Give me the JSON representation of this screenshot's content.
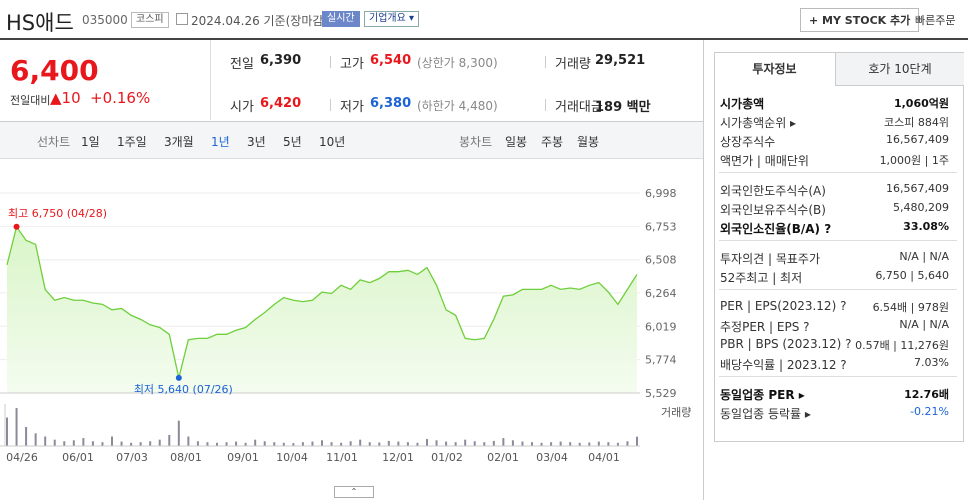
{
  "header": {
    "name": "HS애드",
    "code": "035000",
    "market": "코스피",
    "date": "2024.04.26 기준(장마감)",
    "realtime": "실시간",
    "overview": "기업개요 ▾",
    "mystock": "+ MY STOCK 추가",
    "quick_order": "빠른주문"
  },
  "price": {
    "current": "6,400",
    "change_label": "전일대비",
    "change": "▲10",
    "change_rate": "+0.16%"
  },
  "summary": [
    {
      "label": "전일",
      "value": "6,390"
    },
    {
      "label": "고가",
      "value": "6,540",
      "note": "(상한가 8,300)"
    },
    {
      "label": "거래량",
      "value": "29,521"
    },
    {
      "label": "시가",
      "value": "6,420"
    },
    {
      "label": "저가",
      "value": "6,380",
      "note": "(하한가 4,480)"
    },
    {
      "label": "거래대금",
      "value": "189 백만"
    }
  ],
  "tabs": {
    "line_label": "선차트",
    "line": [
      "1일",
      "1주일",
      "3개월",
      "1년",
      "3년",
      "5년",
      "10년"
    ],
    "candle_label": "봉차트",
    "candle": [
      "일봉",
      "주봉",
      "월봉"
    ]
  },
  "chart_data": {
    "type": "line",
    "color": "#6fcf3a",
    "values": [
      6470,
      6750,
      6650,
      6620,
      6290,
      6210,
      6230,
      6210,
      6210,
      6190,
      6180,
      6140,
      6150,
      6100,
      6070,
      6030,
      6010,
      5960,
      5640,
      5920,
      5930,
      5930,
      5960,
      5960,
      5990,
      6010,
      6070,
      6120,
      6180,
      6230,
      6210,
      6200,
      6210,
      6270,
      6260,
      6320,
      6290,
      6360,
      6340,
      6370,
      6420,
      6420,
      6430,
      6400,
      6450,
      6320,
      6140,
      6100,
      5930,
      5920,
      5930,
      6070,
      6240,
      6250,
      6290,
      6290,
      6290,
      6320,
      6290,
      6300,
      6290,
      6320,
      6340,
      6270,
      6180,
      6290,
      6400
    ],
    "volume": [
      90000,
      120000,
      60000,
      40000,
      30000,
      20000,
      15000,
      18000,
      25000,
      15000,
      12000,
      30000,
      14000,
      10000,
      12000,
      15000,
      20000,
      35000,
      80000,
      30000,
      15000,
      12000,
      10000,
      12000,
      14000,
      10000,
      20000,
      15000,
      12000,
      10000,
      9000,
      12000,
      14000,
      18000,
      12000,
      10000,
      15000,
      20000,
      12000,
      11000,
      16000,
      14000,
      12000,
      10000,
      22000,
      18000,
      14000,
      12000,
      20000,
      15000,
      12000,
      16000,
      25000,
      18000,
      14000,
      12000,
      10000,
      12000,
      14000,
      12000,
      10000,
      11000,
      14000,
      12000,
      10000,
      15000,
      29521
    ],
    "ylim": [
      5529,
      6998
    ],
    "yticks": [
      {
        "value": 6998,
        "label": "6,998"
      },
      {
        "value": 6753,
        "label": "6,753"
      },
      {
        "value": 6508,
        "label": "6,508"
      },
      {
        "value": 6264,
        "label": "6,264"
      },
      {
        "value": 6019,
        "label": "6,019"
      },
      {
        "value": 5774,
        "label": "5,774"
      },
      {
        "value": 5529,
        "label": "5,529"
      }
    ],
    "x_labels": [
      "04/26",
      "06/01",
      "07/03",
      "08/01",
      "09/01",
      "10/04",
      "11/01",
      "12/01",
      "01/02",
      "02/01",
      "03/04",
      "04/01"
    ],
    "high_label": "최고 6,750 (04/28)",
    "low_label": "최저 5,640 (07/26)",
    "volume_label": "거래량"
  },
  "info": {
    "tabs": [
      "투자정보",
      "호가 10단계"
    ],
    "groups": [
      [
        {
          "label": "시가총액",
          "value": "1,060억원",
          "bold": true
        },
        {
          "label": "시가총액순위 ▸",
          "value": "코스피 884위"
        },
        {
          "label": "상장주식수",
          "value": "16,567,409"
        },
        {
          "label": "액면가 | 매매단위",
          "value": "1,000원 | 1주"
        }
      ],
      [
        {
          "label": "외국인한도주식수(A)",
          "value": "16,567,409"
        },
        {
          "label": "외국인보유주식수(B)",
          "value": "5,480,209"
        },
        {
          "label": "외국인소진율(B/A) ?",
          "value": "33.08%",
          "bold": true
        }
      ],
      [
        {
          "label": "투자의견 | 목표주가",
          "value": "N/A | N/A"
        },
        {
          "label": "52주최고 | 최저",
          "value": "6,750 | 5,640"
        }
      ],
      [
        {
          "label": "PER | EPS(2023.12) ?",
          "value": "6.54배 | 978원"
        },
        {
          "label": "추정PER | EPS ?",
          "value": "N/A | N/A"
        },
        {
          "label": "PBR | BPS (2023.12) ?",
          "value": "0.57배 | 11,276원"
        },
        {
          "label": "배당수익률 | 2023.12 ?",
          "value": "7.03%"
        }
      ],
      [
        {
          "label": "동일업종 PER ▸",
          "value": "12.76배",
          "bold": true
        },
        {
          "label": "동일업종 등락률 ▸",
          "value": "-0.21%",
          "color": "#1b63d6"
        }
      ]
    ]
  }
}
